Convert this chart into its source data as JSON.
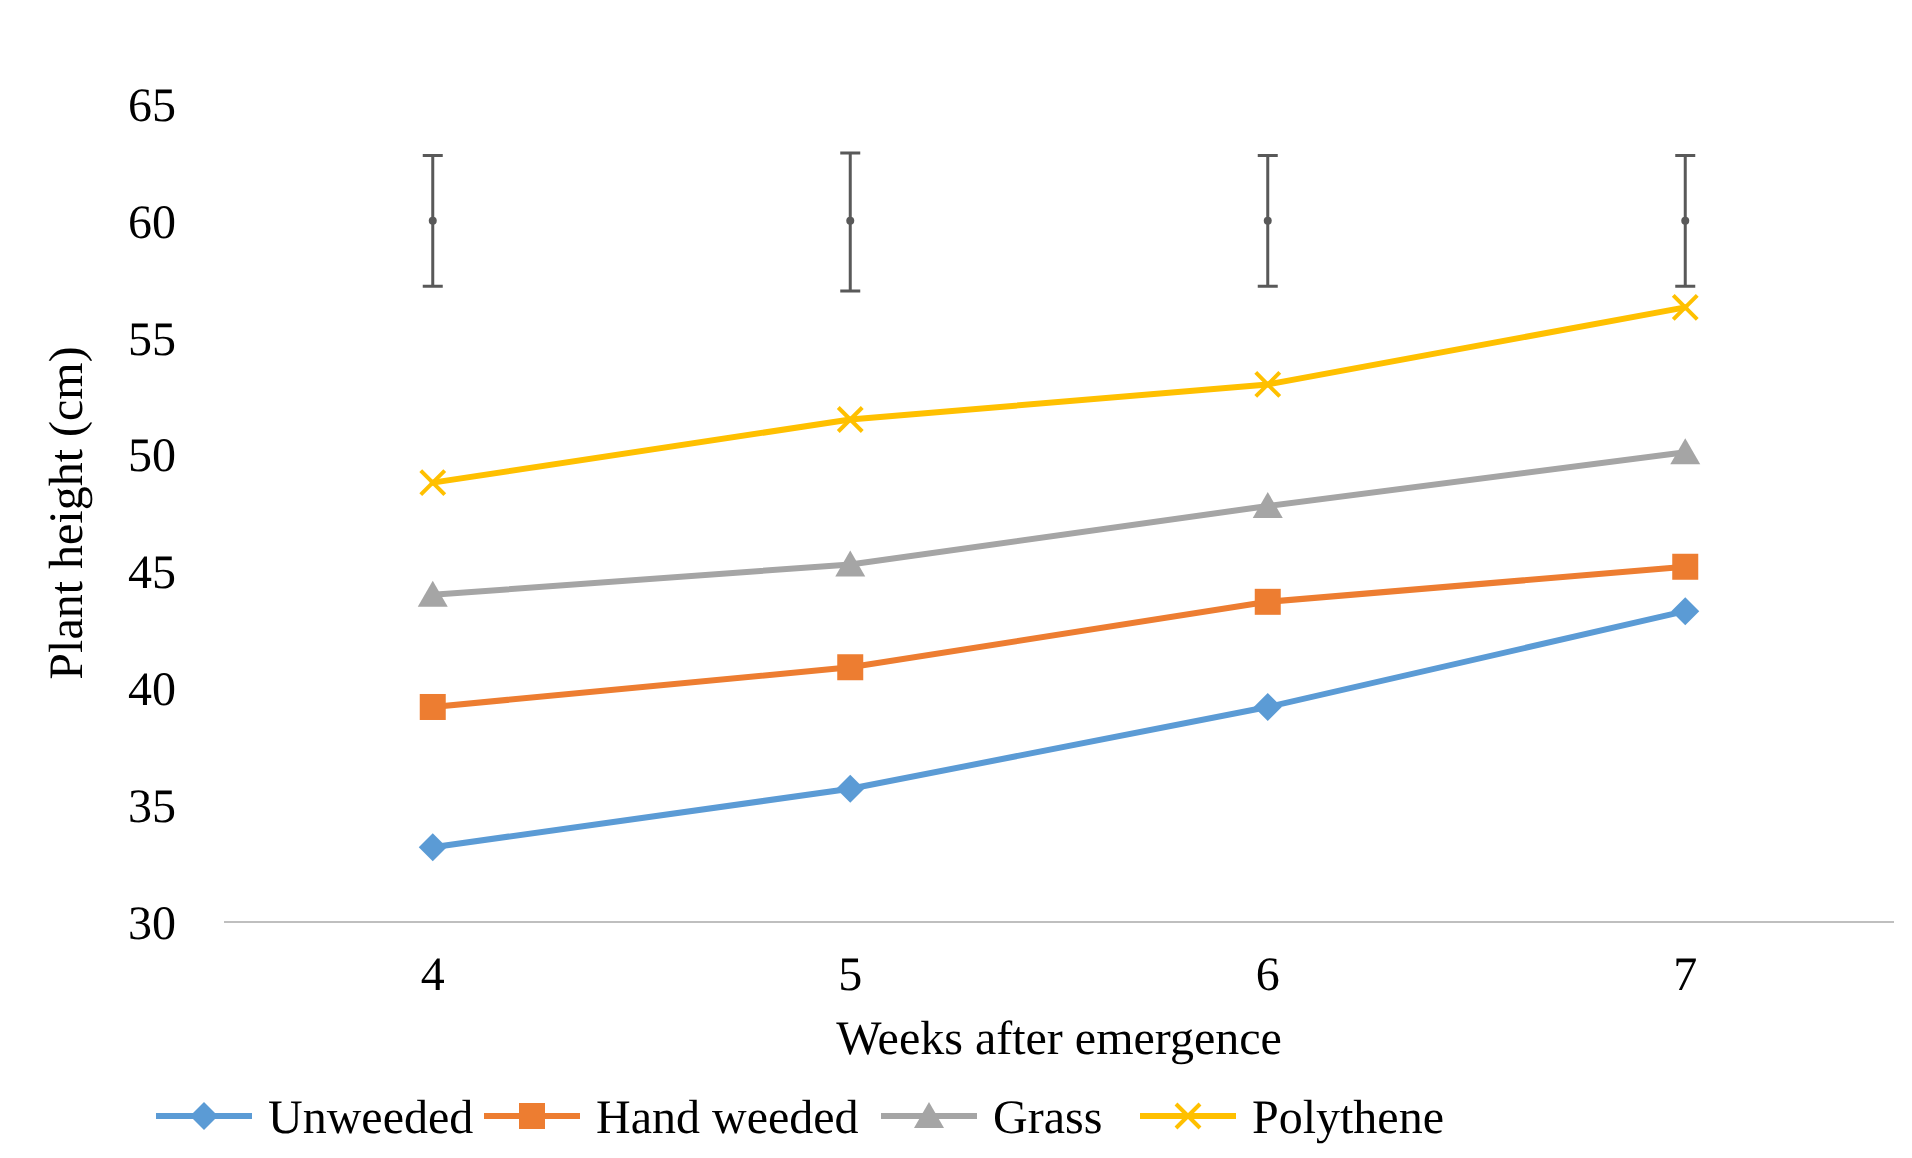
{
  "chart_data": {
    "type": "line",
    "xlabel": "Weeks after emergence",
    "ylabel": "Plant height (cm)",
    "categories": [
      "4",
      "5",
      "6",
      "7"
    ],
    "ylim": [
      30,
      65
    ],
    "yticks": [
      30,
      35,
      40,
      45,
      50,
      55,
      60,
      65
    ],
    "grid": false,
    "legend": "bottom",
    "line_style": "solid",
    "series": [
      {
        "name": "Unweeded",
        "color": "#5b9bd5",
        "marker": "diamond",
        "values": [
          33.2,
          35.7,
          39.2,
          43.3
        ]
      },
      {
        "name": "Hand weeded",
        "color": "#ed7d31",
        "marker": "square",
        "values": [
          39.2,
          40.9,
          43.7,
          45.2
        ]
      },
      {
        "name": "Grass",
        "color": "#a5a5a5",
        "marker": "triangle",
        "values": [
          44.0,
          45.3,
          47.8,
          50.1
        ]
      },
      {
        "name": "Polythene",
        "color": "#ffc000",
        "marker": "cross",
        "values": [
          48.8,
          51.5,
          53.0,
          56.3
        ]
      },
      {
        "type": "scatter",
        "color": "#595959",
        "marker": "circle",
        "values": [
          60,
          60,
          60,
          60
        ],
        "errors": [
          [
            57.2,
            62.8
          ],
          [
            57.0,
            62.9
          ],
          [
            57.2,
            62.8
          ],
          [
            57.2,
            62.8
          ]
        ]
      }
    ]
  }
}
